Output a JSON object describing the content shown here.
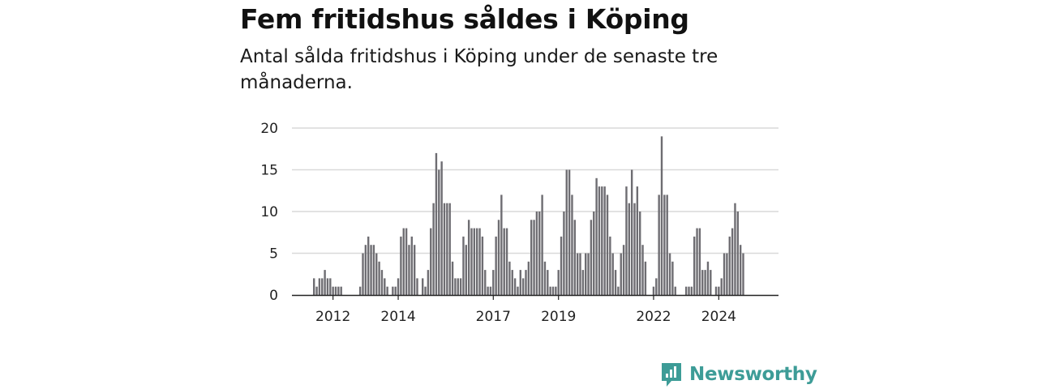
{
  "header": {
    "title": "Fem fritidshus såldes i Köping",
    "subtitle": "Antal sålda fritidshus i Köping under de senaste tre månaderna."
  },
  "brand": {
    "name": "Newsworthy",
    "logo_icon": "newsworthy-logo-icon",
    "color": "#3d9c97"
  },
  "colors": {
    "bar": "#6e6d72",
    "highlight": "#1a9a8f",
    "grid": "#d9d9d9",
    "axis": "#222222"
  },
  "chart_data": {
    "type": "bar",
    "title": "Fem fritidshus såldes i Köping",
    "subtitle": "Antal sålda fritidshus i Köping under de senaste tre månaderna.",
    "ylim": [
      0,
      20
    ],
    "yticks": [
      "0",
      "5",
      "10",
      "15",
      "20"
    ],
    "xticks": [
      {
        "label": "2012",
        "index": 7
      },
      {
        "label": "2014",
        "index": 31
      },
      {
        "label": "2017",
        "index": 66
      },
      {
        "label": "2019",
        "index": 90
      },
      {
        "label": "2022",
        "index": 125
      },
      {
        "label": "2024",
        "index": 149
      }
    ],
    "grid": true,
    "legend": "none",
    "highlight_index": 162,
    "highlight_label": "5",
    "values": [
      2,
      1,
      2,
      2,
      3,
      2,
      2,
      1,
      1,
      1,
      1,
      0,
      0,
      0,
      0,
      0,
      0,
      1,
      5,
      6,
      7,
      6,
      6,
      5,
      4,
      3,
      2,
      1,
      0,
      1,
      1,
      2,
      7,
      8,
      8,
      6,
      7,
      6,
      2,
      0,
      2,
      1,
      3,
      8,
      11,
      17,
      15,
      16,
      11,
      11,
      11,
      4,
      2,
      2,
      2,
      7,
      6,
      9,
      8,
      8,
      8,
      8,
      7,
      3,
      1,
      1,
      3,
      7,
      9,
      12,
      8,
      8,
      4,
      3,
      2,
      1,
      3,
      2,
      3,
      4,
      9,
      9,
      10,
      10,
      12,
      4,
      3,
      1,
      1,
      1,
      3,
      7,
      10,
      15,
      15,
      12,
      9,
      5,
      5,
      3,
      5,
      5,
      9,
      10,
      14,
      13,
      13,
      13,
      12,
      7,
      5,
      3,
      1,
      5,
      6,
      13,
      11,
      15,
      11,
      13,
      10,
      6,
      4,
      0,
      0,
      1,
      2,
      12,
      19,
      12,
      12,
      5,
      4,
      1,
      0,
      0,
      0,
      1,
      1,
      1,
      7,
      8,
      8,
      3,
      3,
      4,
      3,
      0,
      1,
      1,
      2,
      5,
      5,
      7,
      8,
      11,
      10,
      6,
      5
    ]
  }
}
